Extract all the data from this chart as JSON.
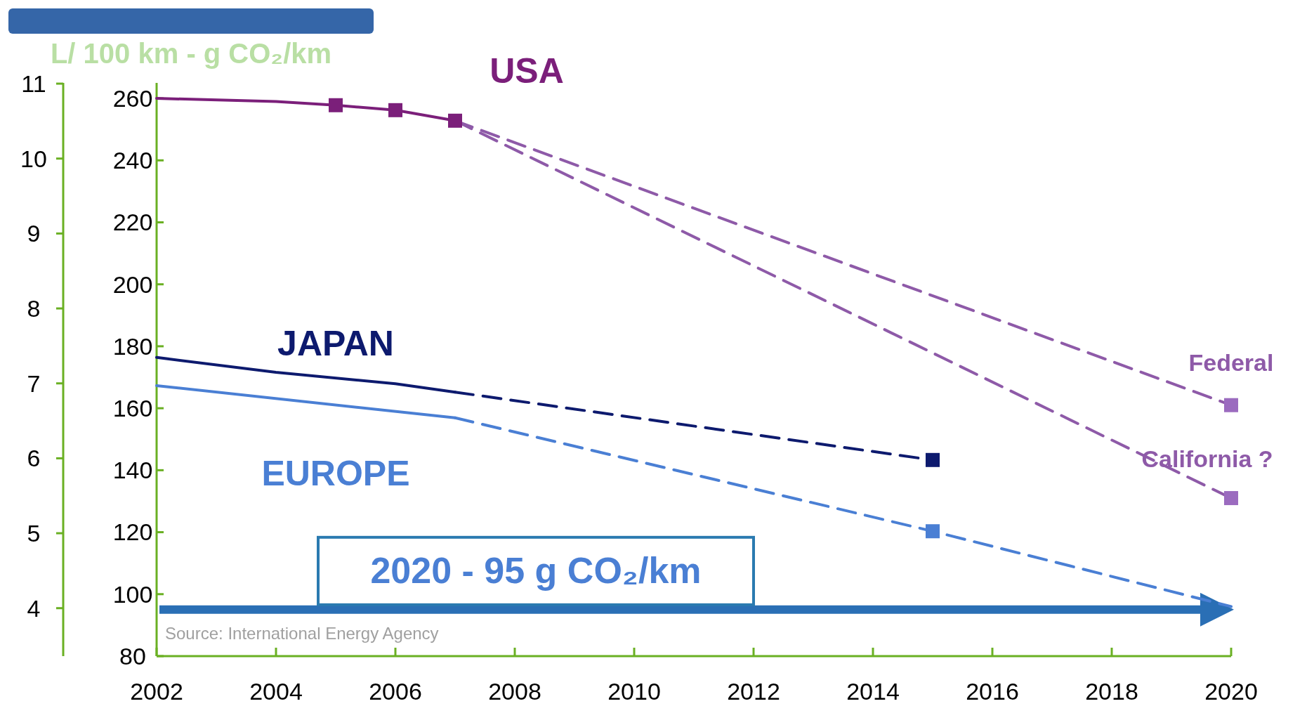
{
  "chart_data": {
    "type": "line",
    "ylabel": "L/ 100 km - g CO₂/km",
    "xlim": [
      2002,
      2020
    ],
    "xticks": [
      2002,
      2004,
      2006,
      2008,
      2010,
      2012,
      2014,
      2016,
      2018,
      2020
    ],
    "ylim": [
      80,
      265
    ],
    "yticks": [
      80,
      100,
      120,
      140,
      160,
      180,
      200,
      220,
      240,
      260
    ],
    "y2lim": [
      3.36,
      11.01
    ],
    "y2ticks": [
      4,
      5,
      6,
      7,
      8,
      9,
      10,
      11
    ],
    "grid": false,
    "series": [
      {
        "name": "USA",
        "color": "#7b1f7a",
        "x": [
          2002,
          2004,
          2005,
          2006,
          2007
        ],
        "values": [
          260,
          259,
          257.8,
          256.2,
          252.8
        ],
        "line_style": "solid"
      },
      {
        "name": "Federal",
        "color": "#8e5aa8",
        "x": [
          2007,
          2020
        ],
        "values": [
          252.8,
          161
        ],
        "line_style": "dashed"
      },
      {
        "name": "California ?",
        "color": "#8e5aa8",
        "x": [
          2007,
          2020
        ],
        "values": [
          252.8,
          131
        ],
        "line_style": "dashed"
      },
      {
        "name": "JAPAN",
        "color": "#0d1a6e",
        "x": [
          2002,
          2004,
          2006,
          2007
        ],
        "values": [
          176.4,
          171.6,
          167.9,
          165.2
        ],
        "line_style": "solid"
      },
      {
        "color": "#0d1a6e",
        "x": [
          2007,
          2015
        ],
        "values": [
          165.2,
          143.3
        ],
        "line_style": "dashed"
      },
      {
        "name": "EUROPE",
        "color": "#4a7fd4",
        "x": [
          2002,
          2007
        ],
        "values": [
          167.3,
          156.9
        ],
        "line_style": "solid"
      },
      {
        "color": "#4a7fd4",
        "x": [
          2007,
          2015,
          2020
        ],
        "values": [
          156.9,
          120.3,
          96
        ],
        "line_style": "dashed"
      },
      {
        "type": "scatter",
        "marker": "square",
        "color": "#7b1f7a",
        "x": [
          2005,
          2006,
          2007
        ],
        "values": [
          257.8,
          256.2,
          252.8
        ]
      },
      {
        "type": "scatter",
        "marker": "square",
        "color": "#9b6bbf",
        "x": [
          2020,
          2020
        ],
        "values": [
          161,
          131
        ]
      },
      {
        "type": "scatter",
        "marker": "square",
        "color": "#0d1a6e",
        "x": [
          2015
        ],
        "values": [
          143.3
        ]
      },
      {
        "type": "scatter",
        "marker": "square",
        "color": "#4a7fd4",
        "x": [
          2015
        ],
        "values": [
          120.3
        ]
      }
    ],
    "ref_lines": [
      {
        "axis": "y",
        "value": 95,
        "label": "2020 - 95 g CO₂/km",
        "color": "#2a6fb5"
      }
    ],
    "annotations": [
      "Source: International Energy Agency"
    ]
  }
}
